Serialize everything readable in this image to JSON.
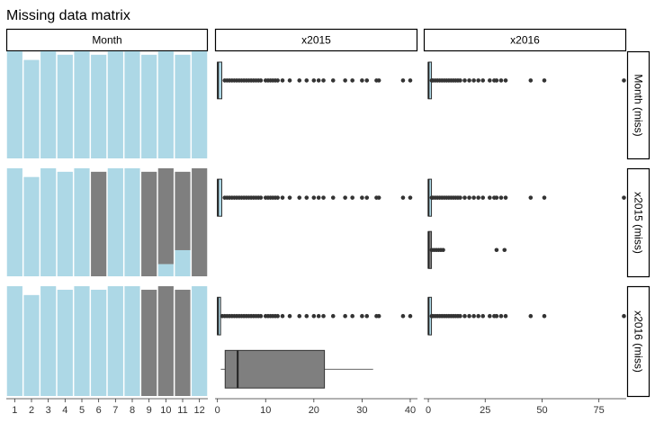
{
  "chart_data": {
    "type": "matrix",
    "title": "Missing data matrix",
    "column_strips": [
      "Month",
      "x2015",
      "x2016"
    ],
    "row_strips": [
      "Month (miss)",
      "x2015 (miss)",
      "x2016 (miss)"
    ],
    "colors": {
      "present": "#add8e6",
      "missing": "#7f7f7f",
      "points": "#333333",
      "strip_fill": "#ffffff",
      "strip_border": "#000000"
    },
    "month_ticks": [
      "1",
      "2",
      "3",
      "4",
      "5",
      "6",
      "7",
      "8",
      "9",
      "10",
      "11",
      "12"
    ],
    "month_ylim": [
      0,
      62
    ],
    "month_bars": [
      {
        "row": "Month (miss)",
        "segments": [
          {
            "month": 1,
            "present": 62,
            "missing": 0
          },
          {
            "month": 2,
            "present": 57,
            "missing": 0
          },
          {
            "month": 3,
            "present": 62,
            "missing": 0
          },
          {
            "month": 4,
            "present": 60,
            "missing": 0
          },
          {
            "month": 5,
            "present": 62,
            "missing": 0
          },
          {
            "month": 6,
            "present": 60,
            "missing": 0
          },
          {
            "month": 7,
            "present": 62,
            "missing": 0
          },
          {
            "month": 8,
            "present": 62,
            "missing": 0
          },
          {
            "month": 9,
            "present": 60,
            "missing": 0
          },
          {
            "month": 10,
            "present": 62,
            "missing": 0
          },
          {
            "month": 11,
            "present": 60,
            "missing": 0
          },
          {
            "month": 12,
            "present": 62,
            "missing": 0
          }
        ]
      },
      {
        "row": "x2015 (miss)",
        "segments": [
          {
            "month": 1,
            "present": 62,
            "missing": 0
          },
          {
            "month": 2,
            "present": 57,
            "missing": 0
          },
          {
            "month": 3,
            "present": 62,
            "missing": 0
          },
          {
            "month": 4,
            "present": 60,
            "missing": 0
          },
          {
            "month": 5,
            "present": 62,
            "missing": 0
          },
          {
            "month": 6,
            "present": 0,
            "missing": 60
          },
          {
            "month": 7,
            "present": 62,
            "missing": 0
          },
          {
            "month": 8,
            "present": 62,
            "missing": 0
          },
          {
            "month": 9,
            "present": 0,
            "missing": 60
          },
          {
            "month": 10,
            "present": 7,
            "missing": 55
          },
          {
            "month": 11,
            "present": 15,
            "missing": 45
          },
          {
            "month": 12,
            "present": 0,
            "missing": 62
          }
        ]
      },
      {
        "row": "x2016 (miss)",
        "segments": [
          {
            "month": 1,
            "present": 62,
            "missing": 0
          },
          {
            "month": 2,
            "present": 57,
            "missing": 0
          },
          {
            "month": 3,
            "present": 62,
            "missing": 0
          },
          {
            "month": 4,
            "present": 60,
            "missing": 0
          },
          {
            "month": 5,
            "present": 62,
            "missing": 0
          },
          {
            "month": 6,
            "present": 60,
            "missing": 0
          },
          {
            "month": 7,
            "present": 62,
            "missing": 0
          },
          {
            "month": 8,
            "present": 62,
            "missing": 0
          },
          {
            "month": 9,
            "present": 0,
            "missing": 60
          },
          {
            "month": 10,
            "present": 0,
            "missing": 62
          },
          {
            "month": 11,
            "present": 0,
            "missing": 60
          },
          {
            "month": 12,
            "present": 62,
            "missing": 0
          }
        ]
      }
    ],
    "x2015_axis": {
      "ticks": [
        0,
        10,
        20,
        30,
        40
      ],
      "range": [
        -0.5,
        41.5
      ]
    },
    "x2016_axis": {
      "ticks": [
        0,
        25,
        50,
        75
      ],
      "range": [
        -2,
        87
      ]
    },
    "boxplots": [
      {
        "row": "Month (miss)",
        "col": "x2015",
        "group": "present",
        "color": "#add8e6",
        "min": 0,
        "q1": 0,
        "median": 0.1,
        "q3": 0.9,
        "max": 0.9,
        "outliers": [
          1.5,
          2,
          2.5,
          3,
          3.5,
          4,
          4.5,
          5,
          5.5,
          6,
          6.5,
          7,
          7.5,
          8,
          8.5,
          9,
          10,
          10.5,
          11,
          11.5,
          12,
          12.5,
          13.5,
          15,
          17,
          18.5,
          20,
          21,
          22,
          24,
          26.5,
          28,
          30,
          31,
          33,
          33.5,
          38.5,
          40
        ]
      },
      {
        "row": "Month (miss)",
        "col": "x2016",
        "group": "present",
        "color": "#add8e6",
        "min": 0,
        "q1": 0,
        "median": 0.1,
        "q3": 0.6,
        "max": 1,
        "outliers": [
          1.5,
          2,
          3,
          4,
          5,
          6,
          7,
          8,
          9,
          10,
          11,
          12,
          13,
          14,
          16,
          18,
          20,
          22,
          24,
          27,
          29,
          30,
          32,
          34,
          45,
          51,
          86
        ]
      },
      {
        "row": "x2015 (miss)",
        "col": "x2015",
        "group": "present",
        "color": "#add8e6",
        "min": 0,
        "q1": 0,
        "median": 0.1,
        "q3": 0.9,
        "max": 0.9,
        "outliers": [
          1.5,
          2,
          2.5,
          3,
          3.5,
          4,
          4.5,
          5,
          5.5,
          6,
          6.5,
          7,
          7.5,
          8,
          8.5,
          9,
          10,
          10.5,
          11,
          11.5,
          12,
          12.5,
          13.5,
          15,
          17,
          18.5,
          20,
          21,
          22,
          24,
          26.5,
          28,
          30,
          31,
          33,
          33.5,
          38.5,
          40
        ]
      },
      {
        "row": "x2015 (miss)",
        "col": "x2016",
        "group": "present",
        "color": "#add8e6",
        "min": 0,
        "q1": 0,
        "median": 0.1,
        "q3": 0.7,
        "max": 1,
        "outliers": [
          1.5,
          2,
          3,
          4,
          5,
          6,
          7,
          8,
          9,
          10,
          11,
          12,
          13,
          14,
          16,
          18,
          20,
          22,
          24,
          27,
          29,
          30,
          32,
          34,
          45,
          51,
          86
        ]
      },
      {
        "row": "x2015 (miss)",
        "col": "x2016",
        "group": "missing",
        "color": "#7f7f7f",
        "min": 0,
        "q1": 0,
        "median": 0.1,
        "q3": 0.3,
        "max": 0.6,
        "outliers": [
          1.5,
          2.5,
          3.5,
          4.5,
          5.5,
          6.5,
          30,
          33.5
        ]
      },
      {
        "row": "x2016 (miss)",
        "col": "x2015",
        "group": "present",
        "color": "#add8e6",
        "min": 0,
        "q1": 0,
        "median": 0.1,
        "q3": 0.3,
        "max": 0.5,
        "outliers": [
          1,
          1.5,
          2,
          2.5,
          3,
          3.5,
          4,
          4.5,
          5,
          5.5,
          6,
          6.5,
          7,
          7.5,
          8,
          8.5,
          9,
          10,
          10.5,
          11,
          11.5,
          12,
          12.5,
          13.5,
          15,
          17,
          18.5,
          20,
          21,
          22,
          24,
          26.5,
          28,
          30,
          31,
          33,
          33.5,
          38.5,
          40
        ]
      },
      {
        "row": "x2016 (miss)",
        "col": "x2015",
        "group": "missing",
        "color": "#7f7f7f",
        "min": 0.7,
        "q1": 1.6,
        "median": 4.2,
        "q3": 22.2,
        "max": 32.3,
        "outliers": []
      },
      {
        "row": "x2016 (miss)",
        "col": "x2016",
        "group": "present",
        "color": "#add8e6",
        "min": 0,
        "q1": 0,
        "median": 0.1,
        "q3": 0.5,
        "max": 1,
        "outliers": [
          1.5,
          2,
          3,
          4,
          5,
          6,
          7,
          8,
          9,
          10,
          11,
          12,
          13,
          14,
          16,
          18,
          20,
          22,
          24,
          27,
          29,
          30,
          32,
          34,
          45,
          51,
          86
        ]
      }
    ]
  }
}
